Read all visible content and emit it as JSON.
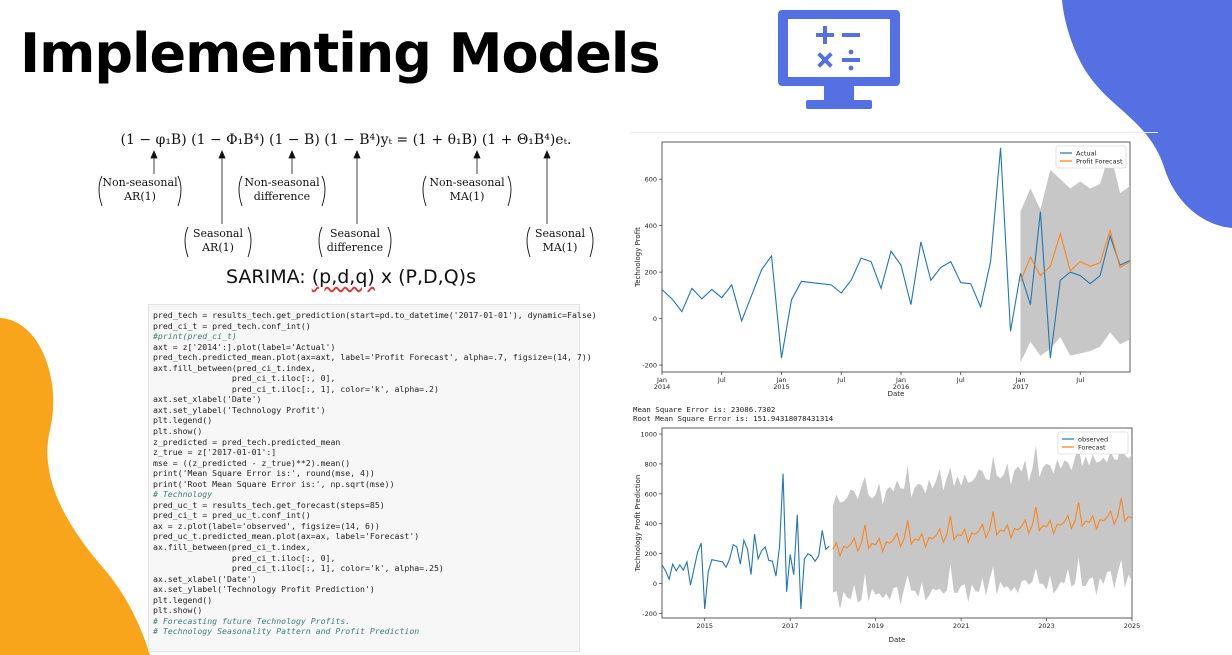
{
  "title": "Implementing Models",
  "colors": {
    "accent_blue": "#5570e2",
    "accent_orange": "#f9a51c",
    "actual_line": "#1f77b4",
    "forecast_line": "#ff7f0e",
    "ci_band": "#bdbdbd"
  },
  "icons": {
    "monitor": "calculator-monitor-icon"
  },
  "equation": {
    "formula_left": "(1 − φ",
    "formula_text": "(1 − φ₁B) (1 − Φ₁B⁴) (1 − B) (1 − B⁴)yₜ  =  (1 + θ₁B) (1 + Θ₁B⁴)eₜ.",
    "labels": [
      {
        "top": "Non-seasonal",
        "bottom": "AR(1)"
      },
      {
        "top": "Seasonal",
        "bottom": "AR(1)"
      },
      {
        "top": "Non-seasonal",
        "bottom": "difference"
      },
      {
        "top": "Seasonal",
        "bottom": "difference"
      },
      {
        "top": "Non-seasonal",
        "bottom": "MA(1)"
      },
      {
        "top": "Seasonal",
        "bottom": "MA(1)"
      }
    ]
  },
  "sarima_prefix": "SARIMA: ",
  "sarima_pdq": "(p,d,q)",
  "sarima_suffix": " x (P,D,Q)s",
  "code_lines": [
    "pred_tech = results_tech.get_prediction(start=pd.to_datetime('2017-01-01'), dynamic=False)",
    "pred_ci_t = pred_tech.conf_int()",
    "#print(pred_ci_t)",
    "axt = z['2014':].plot(label='Actual')",
    "pred_tech.predicted_mean.plot(ax=axt, label='Profit Forecast', alpha=.7, figsize=(14, 7))",
    "axt.fill_between(pred_ci_t.index,",
    "                pred_ci_t.iloc[:, 0],",
    "                pred_ci_t.iloc[:, 1], color='k', alpha=.2)",
    "axt.set_xlabel('Date')",
    "axt.set_ylabel('Technology Profit')",
    "plt.legend()",
    "plt.show()",
    "z_predicted = pred_tech.predicted_mean",
    "z_true = z['2017-01-01':]",
    "mse = ((z_predicted - z_true)**2).mean()",
    "print('Mean Square Error is:', round(mse, 4))",
    "print('Root Mean Square Error is:', np.sqrt(mse))",
    "# Technology",
    "pred_uc_t = results_tech.get_forecast(steps=85)",
    "pred_ci_t = pred_uc_t.conf_int()",
    "ax = z.plot(label='observed', figsize=(14, 6))",
    "pred_uc_t.predicted_mean.plot(ax=ax, label='Forecast')",
    "ax.fill_between(pred_ci_t.index,",
    "                pred_ci_t.iloc[:, 0],",
    "                pred_ci_t.iloc[:, 1], color='k', alpha=.25)",
    "ax.set_xlabel('Date')",
    "ax.set_ylabel('Technology Profit Prediction')",
    "plt.legend()",
    "plt.show()",
    "# Forecasting future Technology Profits.",
    "# Technology Seasonality Pattern and Profit Prediction"
  ],
  "mse_line": "Mean Square Error is: 23086.7302",
  "rmse_line": "Root Mean Square Error is: 151.94318078431314",
  "chart_data": [
    {
      "type": "line",
      "xlabel": "Date",
      "ylabel": "Technology Profit",
      "ylim": [
        -230,
        760
      ],
      "x_ticks": [
        {
          "t": 0,
          "label": "Jan\n2014"
        },
        {
          "t": 6,
          "label": "Jul"
        },
        {
          "t": 12,
          "label": "Jan\n2015"
        },
        {
          "t": 18,
          "label": "Jul"
        },
        {
          "t": 24,
          "label": "Jan\n2016"
        },
        {
          "t": 30,
          "label": "Jul"
        },
        {
          "t": 36,
          "label": "Jan\n2017"
        },
        {
          "t": 42,
          "label": "Jul"
        }
      ],
      "y_ticks": [
        -200,
        0,
        200,
        400,
        600
      ],
      "legend_position": "top-right",
      "series": [
        {
          "name": "Actual",
          "x": [
            0,
            1,
            2,
            3,
            4,
            5,
            6,
            7,
            8,
            9,
            10,
            11,
            12,
            13,
            14,
            15,
            16,
            17,
            18,
            19,
            20,
            21,
            22,
            23,
            24,
            25,
            26,
            27,
            28,
            29,
            30,
            31,
            32,
            33,
            34,
            35,
            36,
            37,
            38,
            39,
            40,
            41,
            42,
            43,
            44,
            45,
            46,
            47
          ],
          "values": [
            125,
            85,
            30,
            130,
            85,
            125,
            90,
            145,
            -10,
            100,
            210,
            270,
            -170,
            80,
            160,
            155,
            150,
            145,
            110,
            165,
            260,
            245,
            130,
            290,
            230,
            60,
            330,
            165,
            220,
            245,
            155,
            150,
            50,
            245,
            735,
            -55,
            195,
            60,
            460,
            -170,
            165,
            200,
            185,
            150,
            185,
            355,
            230,
            250
          ]
        },
        {
          "name": "Profit Forecast",
          "x": [
            36,
            37,
            38,
            39,
            40,
            41,
            42,
            43,
            44,
            45,
            46,
            47
          ],
          "values": [
            160,
            265,
            185,
            225,
            365,
            205,
            245,
            225,
            240,
            380,
            220,
            245
          ],
          "ci_lower": [
            -190,
            -100,
            -160,
            -130,
            -80,
            -160,
            -150,
            -140,
            -120,
            -60,
            -110,
            -90
          ],
          "ci_upper": [
            460,
            560,
            470,
            640,
            600,
            560,
            590,
            560,
            580,
            720,
            540,
            570
          ]
        }
      ]
    },
    {
      "type": "line",
      "xlabel": "Date",
      "ylabel": "Technology Profit Prediction",
      "ylim": [
        -230,
        1040
      ],
      "x_ticks": [
        {
          "t": 2015,
          "label": "2015"
        },
        {
          "t": 2017,
          "label": "2017"
        },
        {
          "t": 2019,
          "label": "2019"
        },
        {
          "t": 2021,
          "label": "2021"
        },
        {
          "t": 2023,
          "label": "2023"
        },
        {
          "t": 2025,
          "label": "2025"
        }
      ],
      "y_ticks": [
        -200,
        0,
        200,
        400,
        600,
        800,
        1000
      ],
      "legend_position": "top-right",
      "xlim": [
        2014,
        2025
      ],
      "series": [
        {
          "name": "observed",
          "start": 2014,
          "step": 0.08333,
          "values": [
            125,
            85,
            30,
            130,
            85,
            125,
            90,
            145,
            -10,
            100,
            210,
            270,
            -170,
            80,
            160,
            155,
            150,
            145,
            110,
            165,
            260,
            245,
            130,
            290,
            230,
            60,
            330,
            165,
            220,
            245,
            155,
            150,
            50,
            245,
            735,
            -55,
            195,
            60,
            460,
            -170,
            165,
            200,
            185,
            150,
            185,
            355,
            230,
            250
          ]
        },
        {
          "name": "Forecast",
          "start": 2018,
          "step": 0.08333,
          "season": [
            230,
            270,
            180,
            240,
            230,
            250,
            290,
            200,
            250,
            370,
            210,
            240
          ],
          "trend_per_year": 30,
          "ci_half_start": 330,
          "ci_half_growth_per_year": 12
        }
      ]
    }
  ]
}
